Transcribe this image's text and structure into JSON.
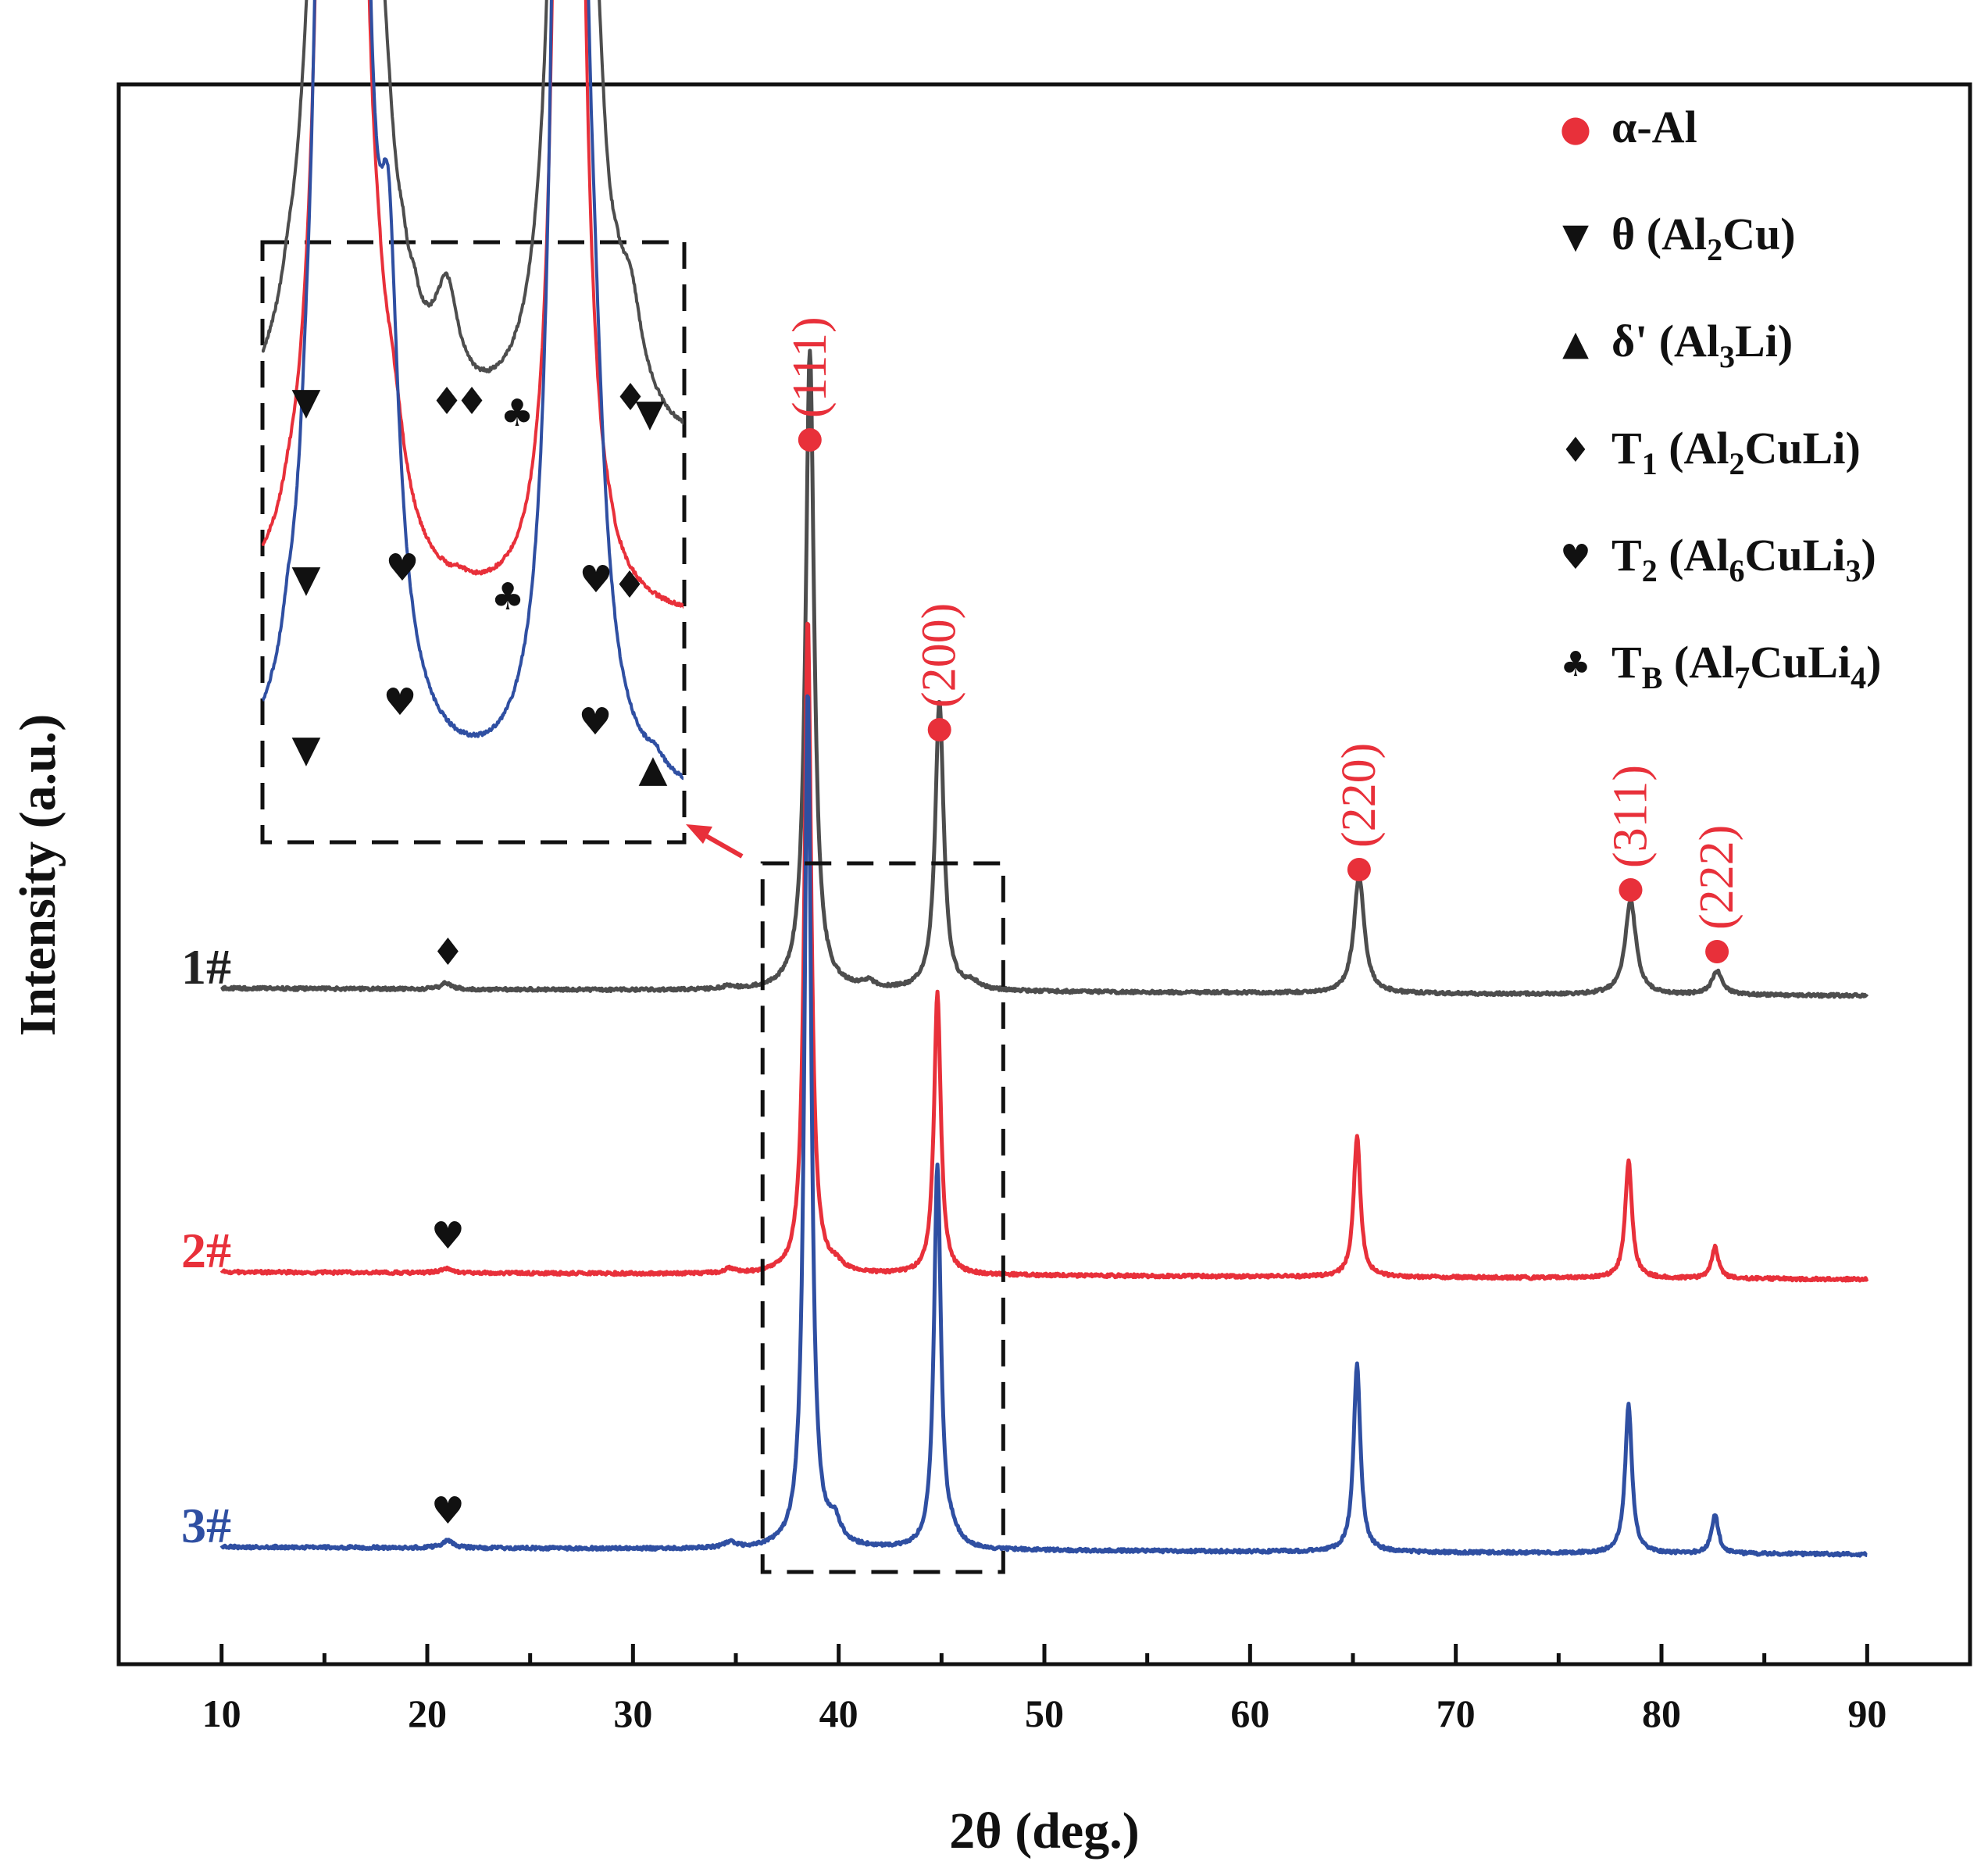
{
  "chart_data": {
    "type": "line",
    "xlabel": "2θ (deg.)",
    "ylabel": "Intensity (a.u.)",
    "xlim": [
      5,
      95
    ],
    "x_ticks": [
      10,
      20,
      30,
      40,
      50,
      60,
      70,
      80,
      90
    ],
    "x_tick_labels": [
      "10",
      "20",
      "30",
      "40",
      "50",
      "60",
      "70",
      "80",
      "90"
    ],
    "y_ticks_shown": false,
    "grid": false,
    "legend_position": "top-right",
    "legend": [
      {
        "symbol": "●",
        "color": "#e8303a",
        "parts": [
          {
            "t": "α-Al",
            "s": "n"
          }
        ]
      },
      {
        "symbol": "▼",
        "color": "#111111",
        "parts": [
          {
            "t": "θ (Al",
            "s": "n"
          },
          {
            "t": "2",
            "s": "sub"
          },
          {
            "t": "Cu)",
            "s": "n"
          }
        ]
      },
      {
        "symbol": "▲",
        "color": "#111111",
        "parts": [
          {
            "t": "δ' (Al",
            "s": "n"
          },
          {
            "t": "3",
            "s": "sub"
          },
          {
            "t": "Li)",
            "s": "n"
          }
        ]
      },
      {
        "symbol": "♦",
        "color": "#111111",
        "parts": [
          {
            "t": "T",
            "s": "n"
          },
          {
            "t": "1",
            "s": "sub"
          },
          {
            "t": " (Al",
            "s": "n"
          },
          {
            "t": "2",
            "s": "sub"
          },
          {
            "t": "CuLi)",
            "s": "n"
          }
        ]
      },
      {
        "symbol": "♥",
        "color": "#111111",
        "parts": [
          {
            "t": "T",
            "s": "n"
          },
          {
            "t": "2",
            "s": "sub"
          },
          {
            "t": " (Al",
            "s": "n"
          },
          {
            "t": "6",
            "s": "sub"
          },
          {
            "t": "CuLi",
            "s": "n"
          },
          {
            "t": "3",
            "s": "sub"
          },
          {
            "t": ")",
            "s": "n"
          }
        ]
      },
      {
        "symbol": "♣",
        "color": "#111111",
        "parts": [
          {
            "t": "T",
            "s": "n"
          },
          {
            "t": "B",
            "s": "sub"
          },
          {
            "t": " (Al",
            "s": "n"
          },
          {
            "t": "7",
            "s": "sub"
          },
          {
            "t": "CuLi",
            "s": "n"
          },
          {
            "t": "4",
            "s": "sub"
          },
          {
            "t": ")",
            "s": "n"
          }
        ]
      }
    ],
    "series": [
      {
        "name": "1#",
        "color": "#4d4d4d",
        "peaks": [
          {
            "x": 38.6,
            "h": 0.82,
            "w": 0.25
          },
          {
            "x": 44.9,
            "h": 0.37,
            "w": 0.25
          },
          {
            "x": 65.3,
            "h": 0.15,
            "w": 0.3
          },
          {
            "x": 78.5,
            "h": 0.12,
            "w": 0.32
          },
          {
            "x": 82.7,
            "h": 0.03,
            "w": 0.3
          },
          {
            "x": 20.9,
            "h": 0.008,
            "w": 0.3
          },
          {
            "x": 34.7,
            "h": 0.004,
            "w": 0.3
          },
          {
            "x": 41.4,
            "h": 0.008,
            "w": 0.4
          },
          {
            "x": 46.5,
            "h": 0.008,
            "w": 0.4
          }
        ]
      },
      {
        "name": "2#",
        "color": "#e8303a",
        "peaks": [
          {
            "x": 38.5,
            "h": 0.84,
            "w": 0.2
          },
          {
            "x": 44.8,
            "h": 0.36,
            "w": 0.2
          },
          {
            "x": 65.2,
            "h": 0.18,
            "w": 0.2
          },
          {
            "x": 78.4,
            "h": 0.15,
            "w": 0.2
          },
          {
            "x": 82.6,
            "h": 0.04,
            "w": 0.2
          },
          {
            "x": 20.9,
            "h": 0.006,
            "w": 0.3
          },
          {
            "x": 34.7,
            "h": 0.006,
            "w": 0.3
          },
          {
            "x": 39.9,
            "h": 0.008,
            "w": 0.4
          }
        ]
      },
      {
        "name": "3#",
        "color": "#2f4fa2",
        "peaks": [
          {
            "x": 38.5,
            "h": 1.1,
            "w": 0.2
          },
          {
            "x": 44.8,
            "h": 0.49,
            "w": 0.2
          },
          {
            "x": 65.2,
            "h": 0.24,
            "w": 0.2
          },
          {
            "x": 78.4,
            "h": 0.19,
            "w": 0.2
          },
          {
            "x": 82.6,
            "h": 0.05,
            "w": 0.2
          },
          {
            "x": 21.0,
            "h": 0.01,
            "w": 0.3
          },
          {
            "x": 34.7,
            "h": 0.007,
            "w": 0.3
          },
          {
            "x": 39.8,
            "h": 0.028,
            "w": 0.35
          },
          {
            "x": 45.5,
            "h": 0.015,
            "w": 0.4
          }
        ]
      }
    ],
    "phase_markers_main": [
      {
        "series": "1#",
        "symbol": "♦",
        "x": 21.0
      },
      {
        "series": "2#",
        "symbol": "♥",
        "x": 21.0
      },
      {
        "series": "3#",
        "symbol": "♥",
        "x": 21.0
      }
    ],
    "alpha_al_peaks": [
      {
        "hkl": "(111)",
        "x": 38.6
      },
      {
        "hkl": "(200)",
        "x": 44.9
      },
      {
        "hkl": "(220)",
        "x": 65.3
      },
      {
        "hkl": "(311)",
        "x": 78.5
      },
      {
        "hkl": "(222)",
        "x": 82.7
      }
    ],
    "zoom_region_x": [
      36.3,
      48.0
    ],
    "inset": {
      "description": "magnified view of 36–48° region",
      "xlim": [
        36.3,
        48.0
      ],
      "markers": [
        {
          "series": "1#",
          "symbols": [
            "▼",
            "♦",
            "♦",
            "♣",
            "♦",
            "▼"
          ]
        },
        {
          "series": "2#",
          "symbols": [
            "▼",
            "♥",
            "♣",
            "♥",
            "♦"
          ]
        },
        {
          "series": "3#",
          "symbols": [
            "▼",
            "♥",
            "♥",
            "▲"
          ]
        }
      ]
    }
  }
}
